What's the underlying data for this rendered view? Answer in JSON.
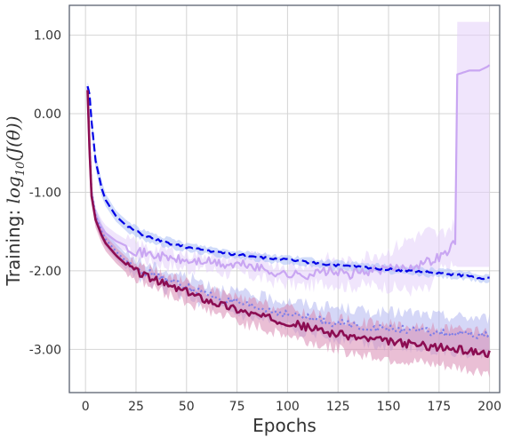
{
  "chart_data": {
    "type": "line",
    "title": "",
    "xlabel": "Epochs",
    "ylabel": {
      "prefix": "Training: ",
      "math_log": "log",
      "math_base": "10",
      "math_body": "(J(θ))"
    },
    "xlim": [
      -8,
      205
    ],
    "ylim": [
      -3.55,
      1.38
    ],
    "xticks": [
      0,
      25,
      50,
      75,
      100,
      125,
      150,
      175,
      200
    ],
    "xtick_labels": [
      "0",
      "25",
      "50",
      "75",
      "100",
      "125",
      "150",
      "175",
      "200"
    ],
    "yticks": [
      1.0,
      0.0,
      -1.0,
      -2.0,
      -3.0
    ],
    "ytick_labels": [
      "1.00",
      "0.00",
      "-1.00",
      "-2.00",
      "-3.00"
    ],
    "grid": true,
    "series": [
      {
        "color": "#c9a6f2",
        "style": "solid",
        "band_color": "#e3cffa",
        "x": [
          1,
          2,
          3,
          5,
          8,
          10,
          15,
          20,
          25,
          30,
          40,
          50,
          60,
          70,
          80,
          90,
          100,
          110,
          120,
          130,
          140,
          150,
          160,
          170,
          175,
          180,
          183,
          184,
          190,
          195,
          199,
          200
        ],
        "y": [
          0.35,
          -0.5,
          -1.05,
          -1.3,
          -1.45,
          -1.52,
          -1.62,
          -1.68,
          -1.75,
          -1.78,
          -1.83,
          -1.88,
          -1.88,
          -1.93,
          -1.92,
          -2.0,
          -2.05,
          -2.05,
          -2.0,
          -2.05,
          -2.0,
          -1.98,
          -1.95,
          -1.88,
          -1.82,
          -1.75,
          -1.6,
          0.5,
          0.55,
          0.55,
          0.6,
          0.62
        ],
        "band_low": [
          0.3,
          -0.6,
          -1.15,
          -1.4,
          -1.55,
          -1.6,
          -1.7,
          -1.75,
          -1.82,
          -1.86,
          -1.93,
          -1.97,
          -1.98,
          -2.03,
          -2.05,
          -2.12,
          -2.17,
          -2.2,
          -2.15,
          -2.2,
          -2.18,
          -2.2,
          -2.25,
          -2.25,
          -2.0,
          -1.95,
          -1.95,
          -1.95,
          -1.95,
          -1.95,
          -1.95,
          -1.95
        ],
        "band_high": [
          0.4,
          -0.4,
          -0.95,
          -1.2,
          -1.35,
          -1.42,
          -1.52,
          -1.6,
          -1.66,
          -1.7,
          -1.73,
          -1.78,
          -1.78,
          -1.83,
          -1.8,
          -1.88,
          -1.93,
          -1.9,
          -1.85,
          -1.9,
          -1.8,
          -1.75,
          -1.6,
          -1.5,
          -1.55,
          -1.45,
          -1.4,
          1.17,
          1.17,
          1.17,
          1.17,
          1.17
        ]
      },
      {
        "color": "#0000e6",
        "style": "dashed",
        "band_color": "#a9bdf5",
        "x": [
          1,
          2,
          3,
          5,
          8,
          10,
          15,
          20,
          25,
          30,
          40,
          50,
          60,
          70,
          80,
          90,
          100,
          110,
          120,
          130,
          140,
          150,
          160,
          170,
          180,
          190,
          200
        ],
        "y": [
          0.35,
          0.25,
          -0.1,
          -0.6,
          -0.95,
          -1.1,
          -1.3,
          -1.42,
          -1.5,
          -1.56,
          -1.64,
          -1.7,
          -1.74,
          -1.78,
          -1.8,
          -1.84,
          -1.86,
          -1.89,
          -1.92,
          -1.94,
          -1.96,
          -1.98,
          -2.0,
          -2.02,
          -2.04,
          -2.07,
          -2.1
        ],
        "band_low": [
          0.3,
          0.18,
          -0.2,
          -0.7,
          -1.05,
          -1.18,
          -1.37,
          -1.49,
          -1.57,
          -1.62,
          -1.7,
          -1.75,
          -1.79,
          -1.83,
          -1.85,
          -1.89,
          -1.91,
          -1.94,
          -1.97,
          -1.99,
          -2.01,
          -2.03,
          -2.05,
          -2.07,
          -2.09,
          -2.12,
          -2.15
        ],
        "band_high": [
          0.4,
          0.32,
          0.0,
          -0.5,
          -0.85,
          -1.02,
          -1.23,
          -1.35,
          -1.43,
          -1.5,
          -1.58,
          -1.65,
          -1.69,
          -1.73,
          -1.75,
          -1.79,
          -1.81,
          -1.84,
          -1.87,
          -1.89,
          -1.91,
          -1.93,
          -1.95,
          -1.97,
          -1.99,
          -2.02,
          -2.05
        ]
      },
      {
        "color": "#7d7de8",
        "style": "dotted",
        "band_color": "#b3b6f0",
        "x": [
          1,
          2,
          3,
          5,
          8,
          10,
          15,
          20,
          25,
          30,
          40,
          50,
          60,
          70,
          80,
          90,
          100,
          110,
          120,
          130,
          140,
          150,
          160,
          170,
          180,
          190,
          200
        ],
        "y": [
          0.3,
          -0.4,
          -1.0,
          -1.3,
          -1.5,
          -1.6,
          -1.75,
          -1.88,
          -1.95,
          -2.02,
          -2.12,
          -2.2,
          -2.3,
          -2.38,
          -2.45,
          -2.5,
          -2.55,
          -2.6,
          -2.65,
          -2.68,
          -2.72,
          -2.74,
          -2.75,
          -2.78,
          -2.8,
          -2.82,
          -2.83
        ],
        "band_low": [
          0.25,
          -0.5,
          -1.1,
          -1.4,
          -1.6,
          -1.7,
          -1.85,
          -1.98,
          -2.05,
          -2.12,
          -2.24,
          -2.33,
          -2.44,
          -2.53,
          -2.6,
          -2.66,
          -2.72,
          -2.78,
          -2.84,
          -2.88,
          -2.92,
          -2.95,
          -2.97,
          -3.0,
          -3.02,
          -3.05,
          -3.07
        ],
        "band_high": [
          0.35,
          -0.3,
          -0.9,
          -1.2,
          -1.4,
          -1.5,
          -1.65,
          -1.78,
          -1.85,
          -1.92,
          -2.0,
          -2.07,
          -2.16,
          -2.23,
          -2.3,
          -2.34,
          -2.38,
          -2.42,
          -2.46,
          -2.48,
          -2.52,
          -2.53,
          -2.53,
          -2.56,
          -2.58,
          -2.59,
          -2.6
        ]
      },
      {
        "color": "#8c0d52",
        "style": "solid",
        "band_color": "#d98ab3",
        "x": [
          1,
          2,
          3,
          5,
          8,
          10,
          15,
          20,
          25,
          30,
          40,
          50,
          60,
          70,
          80,
          90,
          100,
          110,
          120,
          130,
          140,
          150,
          160,
          170,
          180,
          190,
          200
        ],
        "y": [
          0.3,
          -0.45,
          -1.05,
          -1.35,
          -1.55,
          -1.65,
          -1.8,
          -1.92,
          -2.0,
          -2.07,
          -2.18,
          -2.27,
          -2.37,
          -2.45,
          -2.53,
          -2.6,
          -2.65,
          -2.72,
          -2.78,
          -2.83,
          -2.87,
          -2.9,
          -2.93,
          -2.96,
          -2.99,
          -3.02,
          -3.05
        ],
        "band_low": [
          0.25,
          -0.55,
          -1.15,
          -1.45,
          -1.65,
          -1.75,
          -1.9,
          -2.02,
          -2.1,
          -2.17,
          -2.29,
          -2.39,
          -2.5,
          -2.59,
          -2.68,
          -2.76,
          -2.82,
          -2.9,
          -2.97,
          -3.03,
          -3.08,
          -3.12,
          -3.16,
          -3.2,
          -3.23,
          -3.27,
          -3.3
        ],
        "band_high": [
          0.35,
          -0.35,
          -0.95,
          -1.25,
          -1.45,
          -1.55,
          -1.7,
          -1.82,
          -1.9,
          -1.97,
          -2.07,
          -2.15,
          -2.24,
          -2.31,
          -2.38,
          -2.44,
          -2.48,
          -2.54,
          -2.59,
          -2.63,
          -2.66,
          -2.68,
          -2.7,
          -2.72,
          -2.75,
          -2.77,
          -2.8
        ]
      }
    ]
  }
}
